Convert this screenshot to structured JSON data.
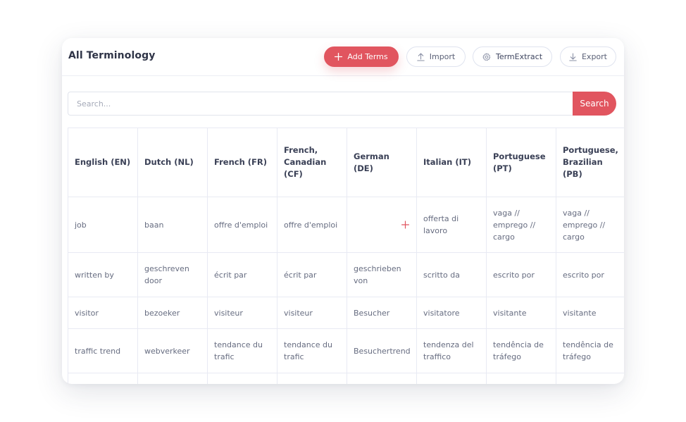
{
  "header": {
    "title": "All Terminology",
    "buttons": {
      "add": "Add Terms",
      "import": "Import",
      "extract": "TermExtract",
      "export": "Export"
    }
  },
  "search": {
    "placeholder": "Search...",
    "value": "",
    "button": "Search"
  },
  "table": {
    "columns": [
      "English (EN)",
      "Dutch (NL)",
      "French (FR)",
      "French, Canadian (CF)",
      "German (DE)",
      "Italian (IT)",
      "Portuguese (PT)",
      "Portuguese, Brazilian (PB)"
    ],
    "rows": [
      [
        "job",
        "baan",
        "offre d'emploi",
        "offre d'emploi",
        "",
        "offerta di lavoro",
        "vaga // emprego // cargo",
        "vaga // emprego // cargo"
      ],
      [
        "written by",
        "geschreven door",
        "écrit par",
        "écrit par",
        "geschrieben von",
        "scritto da",
        "escrito por",
        "escrito por"
      ],
      [
        "visitor",
        "bezoeker",
        "visiteur",
        "visiteur",
        "Besucher",
        "visitatore",
        "visitante",
        "visitante"
      ],
      [
        "traffic trend",
        "webverkeer",
        "tendance du trafic",
        "tendance du trafic",
        "Besuchertrend",
        "tendenza del traffico",
        "tendência de tráfego",
        "tendência de tráfego"
      ],
      [
        "",
        "",
        "",
        "",
        "",
        "",
        "",
        ""
      ]
    ]
  },
  "icons": {
    "add": "plus-icon",
    "import": "upload-icon",
    "extract": "gear-icon",
    "export": "download-icon",
    "add_translation": "plus-icon"
  },
  "colors": {
    "accent": "#e1555f",
    "border": "#e8eaf3",
    "text": "#3f4660"
  }
}
